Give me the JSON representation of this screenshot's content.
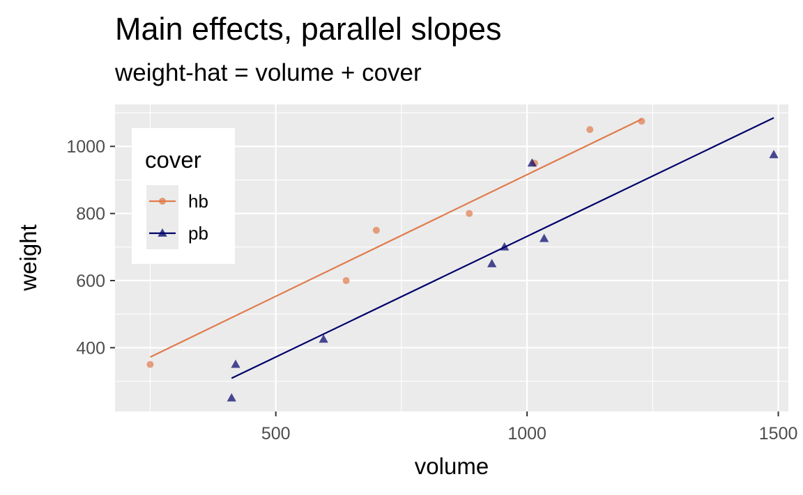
{
  "chart_data": {
    "type": "scatter",
    "title": "Main effects, parallel slopes",
    "subtitle": "weight-hat = volume + cover",
    "xlabel": "volume",
    "ylabel": "weight",
    "xlim": [
      180,
      1520
    ],
    "ylim": [
      210,
      1125
    ],
    "xticks": [
      500,
      1000,
      1500
    ],
    "yticks": [
      400,
      600,
      800,
      1000
    ],
    "grid": true,
    "legend": {
      "title": "cover",
      "position": "top-left"
    },
    "series": [
      {
        "name": "hb",
        "color": "#E07B4C",
        "marker": "circle",
        "points": [
          {
            "x": 250,
            "y": 350
          },
          {
            "x": 640,
            "y": 600
          },
          {
            "x": 700,
            "y": 750
          },
          {
            "x": 885,
            "y": 800
          },
          {
            "x": 1015,
            "y": 950
          },
          {
            "x": 1125,
            "y": 1050
          },
          {
            "x": 1228,
            "y": 1075
          }
        ],
        "fit": {
          "x": [
            250,
            1228
          ],
          "y": [
            372,
            1081
          ]
        }
      },
      {
        "name": "pb",
        "color": "#00006B",
        "marker": "triangle",
        "points": [
          {
            "x": 412,
            "y": 250
          },
          {
            "x": 420,
            "y": 350
          },
          {
            "x": 595,
            "y": 425
          },
          {
            "x": 930,
            "y": 650
          },
          {
            "x": 955,
            "y": 700
          },
          {
            "x": 1010,
            "y": 950
          },
          {
            "x": 1034,
            "y": 725
          },
          {
            "x": 1491,
            "y": 975
          }
        ],
        "fit": {
          "x": [
            412,
            1491
          ],
          "y": [
            309,
            1085
          ]
        }
      }
    ]
  }
}
